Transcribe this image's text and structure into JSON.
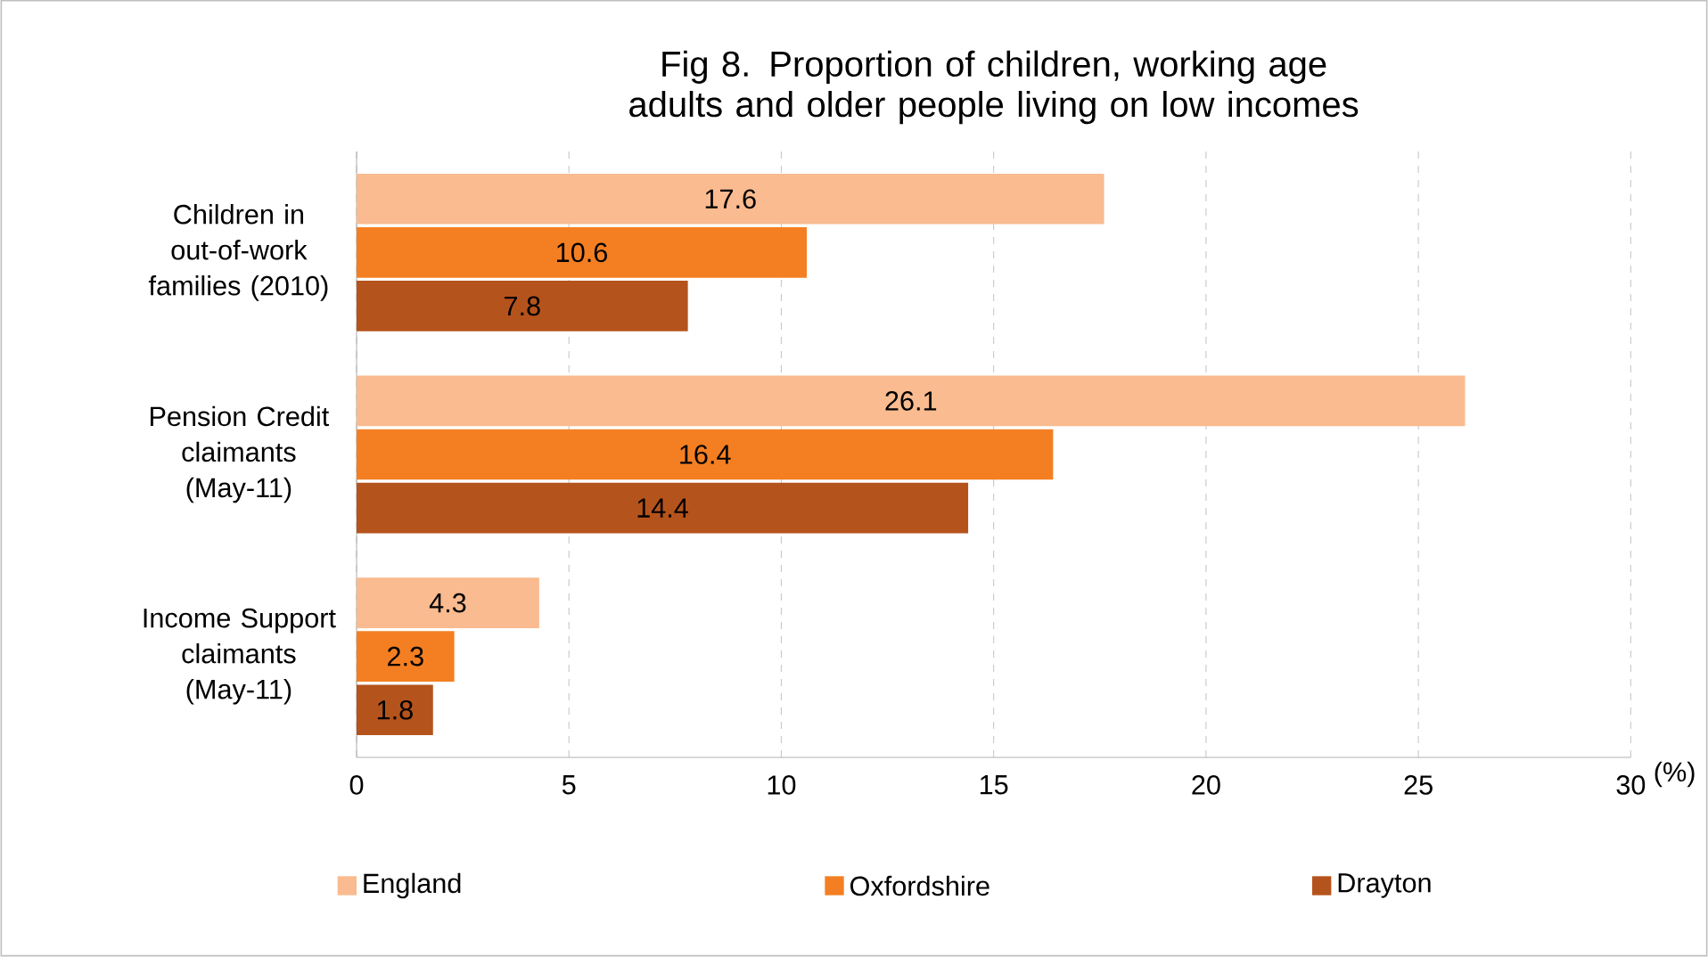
{
  "chart_data": {
    "type": "bar",
    "orientation": "horizontal",
    "title": "Fig 8. Proportion of children, working age adults and older people living on low incomes",
    "categories": [
      "Children in out-of-work families (2010)",
      "Pension Credit claimants (May-11)",
      "Income Support claimants (May-11)"
    ],
    "series": [
      {
        "name": "England",
        "color": "#f9bb8f",
        "values": [
          17.6,
          26.1,
          4.3
        ]
      },
      {
        "name": "Oxfordshire",
        "color": "#f47f22",
        "values": [
          10.6,
          16.4,
          2.3
        ]
      },
      {
        "name": "Drayton",
        "color": "#b5531c",
        "values": [
          7.8,
          14.4,
          1.8
        ]
      }
    ],
    "xlim": [
      0,
      30
    ],
    "xticks": [
      0,
      5,
      10,
      15,
      20,
      25,
      30
    ],
    "xlabel": "(%)",
    "grid": "x",
    "legend": "bottom",
    "data_labels": true
  }
}
